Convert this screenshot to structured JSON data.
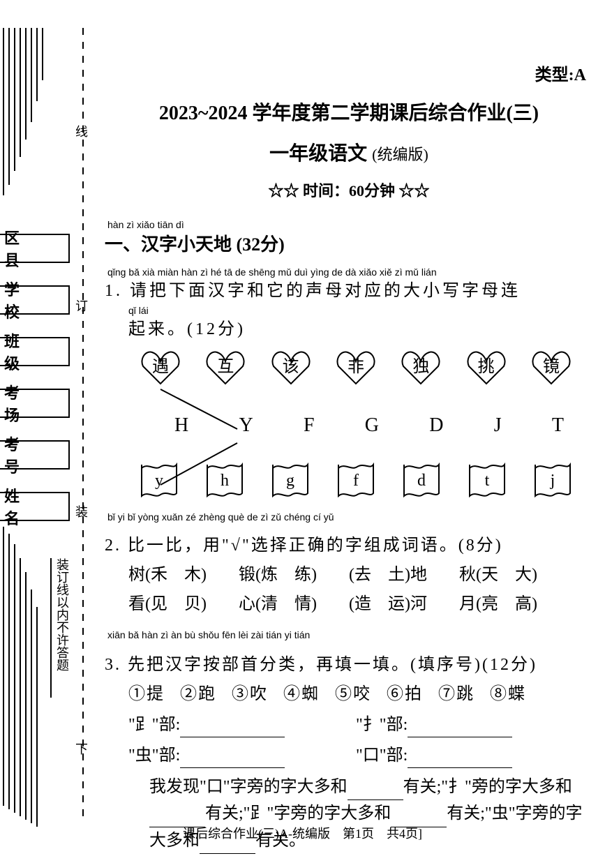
{
  "type_label": "类型:A",
  "title1": "2023~2024 学年度第二学期课后综合作业(三)",
  "title2_main": "一年级语文",
  "title2_sub": "(统编版)",
  "time_row": "☆☆ 时间：60分钟 ☆☆",
  "section1": {
    "pinyin": "hàn zì xiǎo tiān dì",
    "heading": "一、汉字小天地 (32分)"
  },
  "q1": {
    "pinyin1": "qǐng bǎ xià miàn hàn zì hé tā de shēng mǔ duì yìng de dà xiǎo xiě zì mǔ lián",
    "line1": "1. 请把下面汉字和它的声母对应的大小写字母连",
    "pinyin2": "qǐ lái",
    "line2": "起来。(12分)",
    "hearts": [
      "遇",
      "互",
      "该",
      "非",
      "独",
      "挑",
      "镜"
    ],
    "uppers": [
      "H",
      "Y",
      "F",
      "G",
      "D",
      "J",
      "T"
    ],
    "lowers": [
      "y",
      "h",
      "g",
      "f",
      "d",
      "t",
      "j"
    ]
  },
  "q2": {
    "pinyin": "bǐ yi bǐ  yòng     xuǎn zé zhèng què de zì zǔ chéng cí yǔ",
    "line": "2. 比一比，用\"√\"选择正确的字组成词语。(8分)",
    "row1": [
      "树(禾　木)",
      "锻(炼　练)",
      "(去　土)地",
      "秋(天　大)"
    ],
    "row2": [
      "看(见　贝)",
      "心(清　情)",
      "(造　运)河",
      "月(亮　高)"
    ]
  },
  "q3": {
    "pinyin": "xiān bǎ hàn zì àn bù shǒu fēn lèi   zài tián yi tián",
    "line": "3. 先把汉字按部首分类，再填一填。(填序号)(12分)",
    "items": [
      "①提",
      "②跑",
      "③吹",
      "④蜘",
      "⑤咬",
      "⑥拍",
      "⑦跳",
      "⑧蝶"
    ],
    "radicals": {
      "r1_label": "\"𧾷\"部:",
      "r2_label": "\"扌\"部:",
      "r3_label": "\"虫\"部:",
      "r4_label": "\"口\"部:"
    },
    "para": "我发现\"口\"字旁的字大多和_______有关;\"扌\"旁的字大多和_______有关;\"𧾷\"字旁的字大多和_______有关;\"虫\"字旁的字大多和_______有关。"
  },
  "form_fields": [
    "区　县",
    "学　校",
    "班　级",
    "考　场",
    "考　号",
    "姓　名"
  ],
  "markers": {
    "xian": "线",
    "ding": "订",
    "zhuang": "装",
    "xia": "下"
  },
  "vert_note": "装订线以内不许答题",
  "footer": "课后综合作业(三)A-统编版　第1页　共4页]",
  "colors": {
    "bg": "#ffffff",
    "ink": "#000000",
    "stroke_width": 2
  }
}
